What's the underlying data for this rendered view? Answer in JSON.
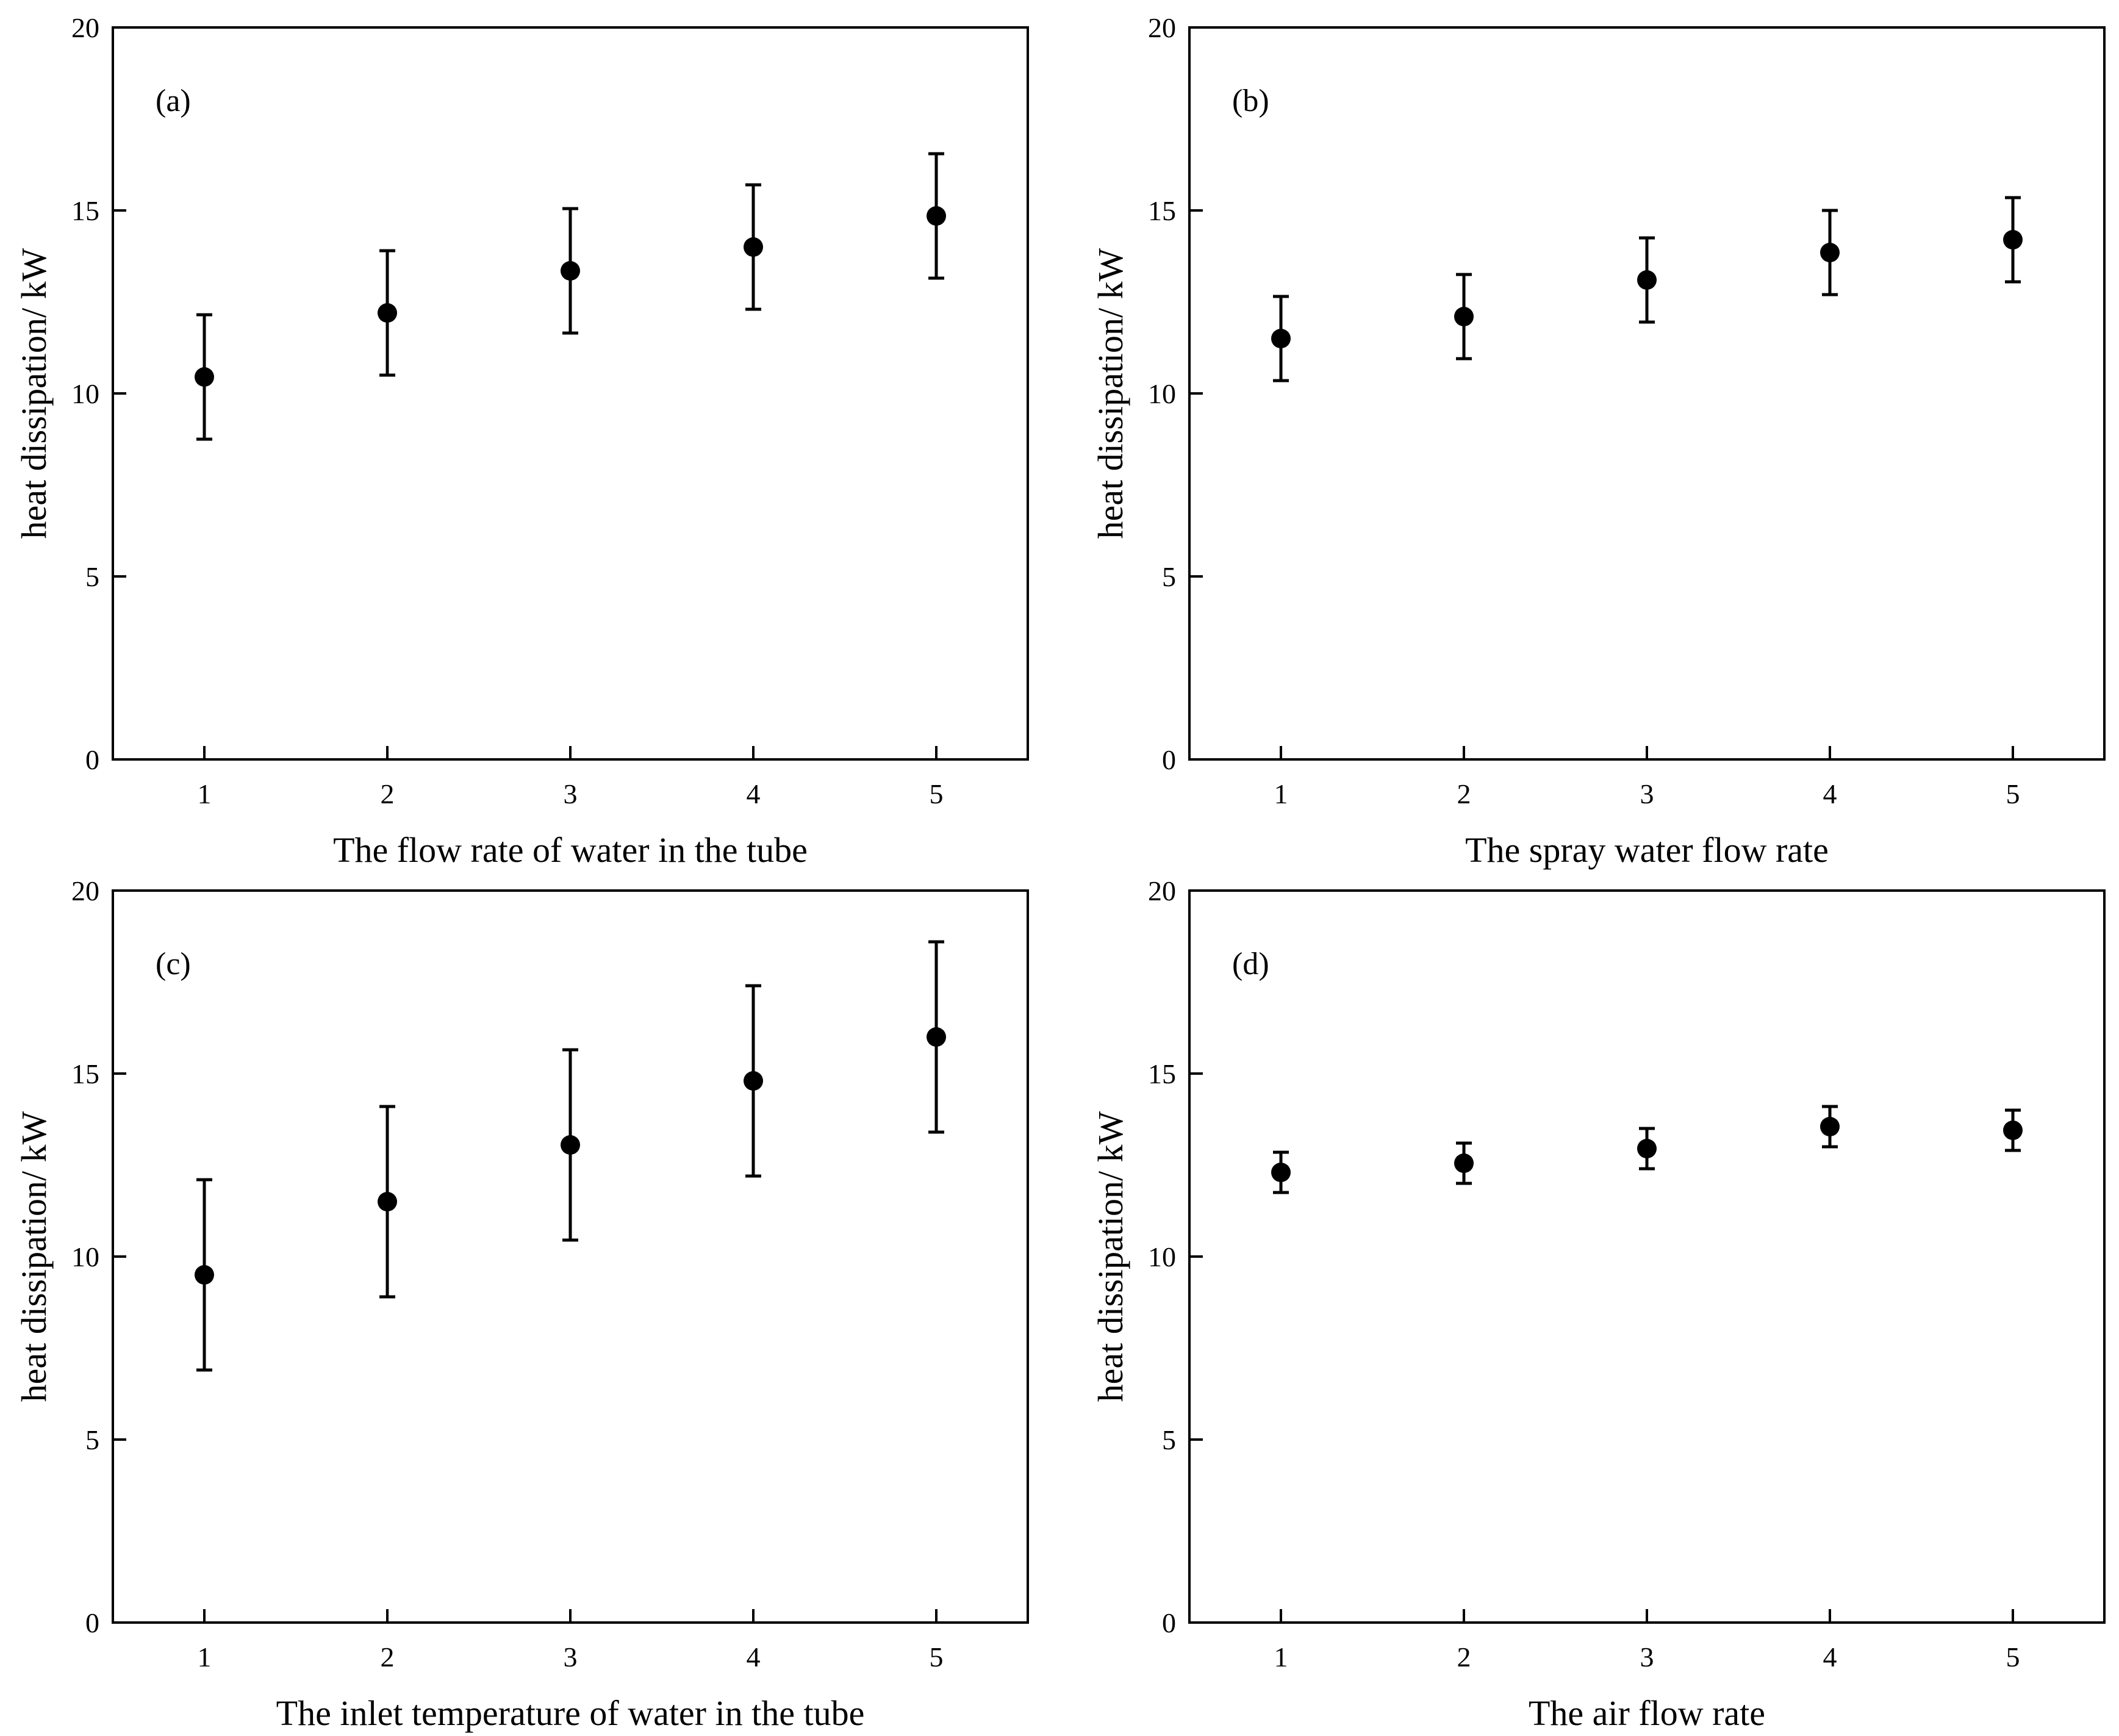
{
  "chart_data": [
    {
      "type": "scatter",
      "panel_label": "(a)",
      "xlabel": "The flow rate of water in the tube",
      "ylabel": "heat dissipation/ kW",
      "x": [
        1,
        2,
        3,
        4,
        5
      ],
      "y": [
        10.45,
        12.2,
        13.35,
        14.0,
        14.85
      ],
      "yerr": [
        1.7,
        1.7,
        1.7,
        1.7,
        1.7
      ],
      "xlim": [
        0.5,
        5.5
      ],
      "ylim": [
        0,
        20
      ],
      "xticks": [
        1,
        2,
        3,
        4,
        5
      ],
      "yticks": [
        0,
        5,
        10,
        15,
        20
      ]
    },
    {
      "type": "scatter",
      "panel_label": "(b)",
      "xlabel": "The spray water flow rate",
      "ylabel": "heat dissipation/ kW",
      "x": [
        1,
        2,
        3,
        4,
        5
      ],
      "y": [
        11.5,
        12.1,
        13.1,
        13.85,
        14.2
      ],
      "yerr": [
        1.15,
        1.15,
        1.15,
        1.15,
        1.15
      ],
      "xlim": [
        0.5,
        5.5
      ],
      "ylim": [
        0,
        20
      ],
      "xticks": [
        1,
        2,
        3,
        4,
        5
      ],
      "yticks": [
        0,
        5,
        10,
        15,
        20
      ]
    },
    {
      "type": "scatter",
      "panel_label": "(c)",
      "xlabel": "The inlet temperature of water in the tube",
      "ylabel": "heat dissipation/ kW",
      "x": [
        1,
        2,
        3,
        4,
        5
      ],
      "y": [
        9.5,
        11.5,
        13.05,
        14.8,
        16.0
      ],
      "yerr": [
        2.6,
        2.6,
        2.6,
        2.6,
        2.6
      ],
      "xlim": [
        0.5,
        5.5
      ],
      "ylim": [
        0,
        20
      ],
      "xticks": [
        1,
        2,
        3,
        4,
        5
      ],
      "yticks": [
        0,
        5,
        10,
        15,
        20
      ]
    },
    {
      "type": "scatter",
      "panel_label": "(d)",
      "xlabel": "The air flow rate",
      "ylabel": "heat dissipation/ kW",
      "x": [
        1,
        2,
        3,
        4,
        5
      ],
      "y": [
        12.3,
        12.55,
        12.95,
        13.55,
        13.45
      ],
      "yerr": [
        0.55,
        0.55,
        0.55,
        0.55,
        0.55
      ],
      "xlim": [
        0.5,
        5.5
      ],
      "ylim": [
        0,
        20
      ],
      "xticks": [
        1,
        2,
        3,
        4,
        5
      ],
      "yticks": [
        0,
        5,
        10,
        15,
        20
      ]
    }
  ]
}
